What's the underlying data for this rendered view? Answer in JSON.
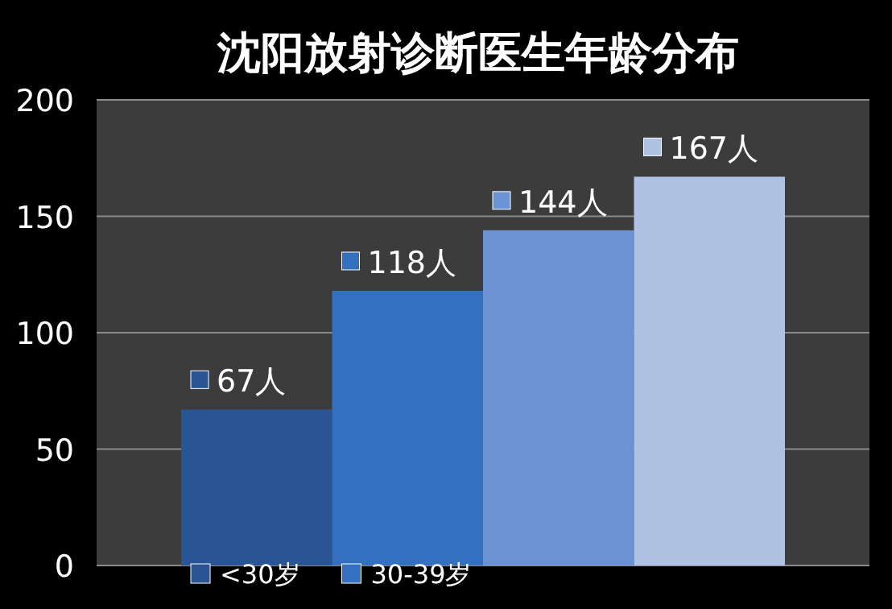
{
  "chart_data": {
    "type": "bar",
    "title": "沈阳放射诊断医生年龄分布",
    "categories": [
      null
    ],
    "series": [
      {
        "name": "<30岁",
        "color": "#2a5595",
        "values": [
          67
        ],
        "value_labels": [
          "67人"
        ]
      },
      {
        "name": "30-39岁",
        "color": "#3370c0",
        "values": [
          118
        ],
        "value_labels": [
          "118人"
        ]
      },
      {
        "color": "#6b93d3",
        "values": [
          144
        ],
        "value_labels": [
          "144人"
        ]
      },
      {
        "color": "#b0c2e4",
        "values": [
          167
        ],
        "value_labels": [
          "167人"
        ]
      }
    ],
    "ylim": [
      0,
      200
    ],
    "yticks": [
      0,
      50,
      100,
      150,
      200
    ],
    "grid": "y",
    "legend": "bottom"
  }
}
